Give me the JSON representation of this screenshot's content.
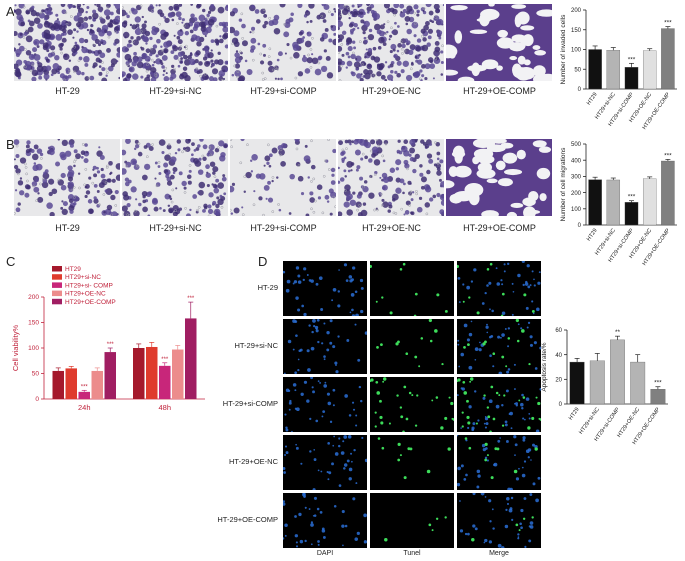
{
  "panels": {
    "A": {
      "label": "A",
      "captions": [
        "HT-29",
        "HT-29+si-NC",
        "HT-29+si-COMP",
        "HT-29+OE-NC",
        "HT-29+OE-COMP"
      ]
    },
    "B": {
      "label": "B",
      "captions": [
        "HT-29",
        "HT-29+si-NC",
        "HT-29+si-COMP",
        "HT-29+OE-NC",
        "HT-29+OE-COMP"
      ]
    },
    "C": {
      "label": "C"
    },
    "D": {
      "label": "D",
      "row_labels": [
        "HT-29",
        "HT-29+si-NC",
        "HT-29+si-COMP",
        "HT-29+OE-NC",
        "HT-29+OE-COMP"
      ],
      "col_labels": [
        "DAPI",
        "Tunel",
        "Merge"
      ]
    }
  },
  "colors": {
    "dark_bar": "#111111",
    "grey_bar": "#b4b4b4",
    "light_bar": "#e0e0e0",
    "mid_bar": "#808080",
    "stain_purple": "#5b3f8c",
    "c_series": [
      "#a5192c",
      "#df3b2d",
      "#c8267a",
      "#ec8c8c",
      "#a01e62"
    ],
    "c_text": "#c0223b"
  },
  "chart_data": [
    {
      "id": "A",
      "type": "bar",
      "ylabel": "Number of invaded cells",
      "ylim": [
        0,
        200
      ],
      "yticks": [
        0,
        50,
        100,
        150,
        200
      ],
      "categories": [
        "HT29",
        "HT29+si-NC",
        "HT29+si-COMP",
        "HT29+OE-NC",
        "HT29+OE-COMP"
      ],
      "values": [
        100,
        98,
        55,
        97,
        153
      ],
      "errors": [
        9,
        7,
        10,
        5,
        5
      ],
      "annotations": [
        "",
        "",
        "***",
        "",
        "***"
      ]
    },
    {
      "id": "B",
      "type": "bar",
      "ylabel": "Number of cell migrations",
      "ylim": [
        0,
        500
      ],
      "yticks": [
        0,
        100,
        200,
        300,
        400,
        500
      ],
      "categories": [
        "HT29",
        "HT29+si-NC",
        "HT29+si-COMP",
        "HT29+OE-NC",
        "HT29+OE-COMP"
      ],
      "values": [
        280,
        278,
        140,
        285,
        395
      ],
      "errors": [
        15,
        12,
        10,
        12,
        10
      ],
      "annotations": [
        "",
        "",
        "***",
        "",
        "***"
      ]
    },
    {
      "id": "C",
      "type": "bar",
      "ylabel": "Cell viability%",
      "ylim": [
        0,
        200
      ],
      "yticks": [
        0,
        50,
        100,
        150,
        200
      ],
      "categories": [
        "24h",
        "48h"
      ],
      "legend_position": "top-left",
      "series": [
        {
          "name": "HT29",
          "values": [
            55,
            100
          ],
          "errors": [
            6,
            8
          ],
          "annotations": [
            "",
            ""
          ]
        },
        {
          "name": "HT29+si-NC",
          "values": [
            60,
            102
          ],
          "errors": [
            4,
            9
          ],
          "annotations": [
            "",
            ""
          ]
        },
        {
          "name": "HT29+si- COMP",
          "values": [
            14,
            65
          ],
          "errors": [
            3,
            6
          ],
          "annotations": [
            "***",
            "***"
          ]
        },
        {
          "name": "HT29+OE-NC",
          "values": [
            55,
            97
          ],
          "errors": [
            6,
            8
          ],
          "annotations": [
            "",
            ""
          ]
        },
        {
          "name": "HT29+OE-COMP",
          "values": [
            92,
            158
          ],
          "errors": [
            8,
            32
          ],
          "annotations": [
            "***",
            "***"
          ]
        }
      ]
    },
    {
      "id": "D",
      "type": "bar",
      "ylabel": "Apoptosis rate/%",
      "ylim": [
        0,
        60
      ],
      "yticks": [
        0,
        20,
        40,
        60
      ],
      "categories": [
        "HT29",
        "HT29+si-NC",
        "HT29+si-COMP",
        "HT29+OE-NC",
        "HT29+OE-COMP"
      ],
      "values": [
        34,
        35,
        52,
        34,
        12
      ],
      "errors": [
        3,
        6,
        3,
        6,
        2
      ],
      "annotations": [
        "",
        "",
        "**",
        "",
        "***"
      ]
    }
  ]
}
